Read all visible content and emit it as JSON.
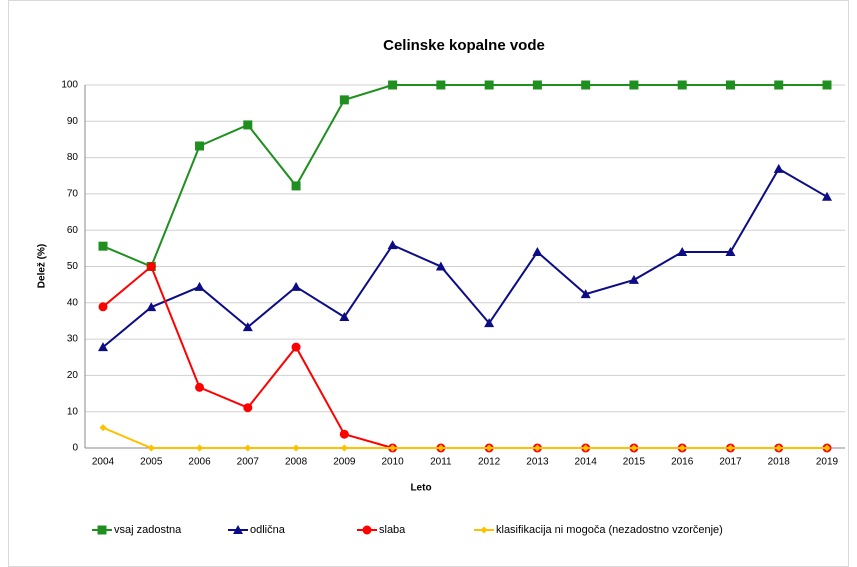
{
  "chart_data": {
    "type": "line",
    "title": "Celinske kopalne vode",
    "x_label": "Leto",
    "y_label": "Delež (%)",
    "categories": [
      "2004",
      "2005",
      "2006",
      "2007",
      "2008",
      "2009",
      "2010",
      "2011",
      "2012",
      "2013",
      "2014",
      "2015",
      "2016",
      "2017",
      "2018",
      "2019"
    ],
    "ylim": [
      0,
      100
    ],
    "yticks": [
      0,
      10,
      20,
      30,
      40,
      50,
      60,
      70,
      80,
      90,
      100
    ],
    "grid": true,
    "legend": "bottom",
    "series": [
      {
        "name": "vsaj zadostna",
        "color": "#1f8f1f",
        "marker": "square",
        "values": [
          55.6,
          50,
          83.2,
          89,
          72.2,
          95.9,
          100,
          100,
          100,
          100,
          100,
          100,
          100,
          100,
          100,
          100
        ]
      },
      {
        "name": "odlična",
        "color": "#0c0c85",
        "marker": "triangle",
        "values": [
          27.8,
          38.8,
          44.4,
          33.3,
          44.4,
          36.1,
          55.9,
          50,
          34.4,
          54,
          42.4,
          46.3,
          54,
          54,
          76.9,
          69.2
        ]
      },
      {
        "name": "slaba",
        "color": "#ff0000",
        "marker": "circle",
        "values": [
          38.9,
          50,
          16.7,
          11.1,
          27.8,
          3.8,
          0,
          0,
          0,
          0,
          0,
          0,
          0,
          0,
          0,
          0
        ]
      },
      {
        "name": "klasifikacija ni mogoča (nezadostno vzorčenje)",
        "color": "#ffc000",
        "marker": "diamond",
        "values": [
          5.6,
          0,
          0,
          0,
          0,
          0,
          0,
          0,
          0,
          0,
          0,
          0,
          0,
          0,
          0,
          0
        ]
      }
    ]
  }
}
